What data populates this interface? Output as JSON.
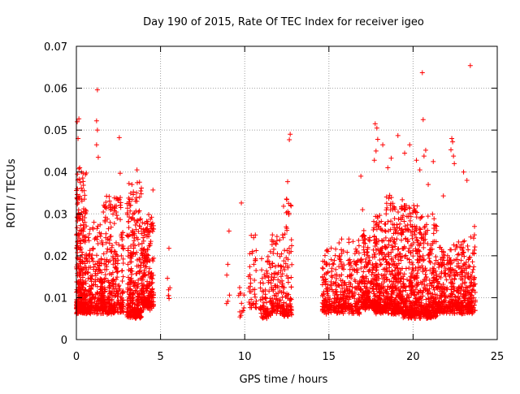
{
  "chart_data": {
    "type": "scatter",
    "title": "Day 190 of 2015, Rate Of TEC Index for receiver igeo",
    "xlabel": "GPS time / hours",
    "ylabel": "ROTI / TECUs",
    "xlim": [
      0,
      25
    ],
    "ylim": [
      0,
      0.07
    ],
    "x_ticks": [
      0,
      5,
      10,
      15,
      20,
      25
    ],
    "x_tick_labels": [
      "0",
      "5",
      "10",
      "15",
      "20",
      "25"
    ],
    "y_ticks": [
      0,
      0.01,
      0.02,
      0.03,
      0.04,
      0.05,
      0.06,
      0.07
    ],
    "y_tick_labels": [
      "0",
      "0.01",
      "0.02",
      "0.03",
      "0.04",
      "0.05",
      "0.06",
      "0.07"
    ],
    "grid": true,
    "marker": "plus",
    "color": "#ff0000",
    "clusters": [
      {
        "x_range": [
          0.0,
          0.6
        ],
        "y_range": [
          0.004,
          0.041
        ],
        "count": 340
      },
      {
        "x_range": [
          0.6,
          1.6
        ],
        "y_range": [
          0.004,
          0.028
        ],
        "count": 260
      },
      {
        "x_range": [
          1.6,
          2.8
        ],
        "y_range": [
          0.004,
          0.035
        ],
        "count": 300
      },
      {
        "x_range": [
          3.0,
          3.9
        ],
        "y_range": [
          0.003,
          0.038
        ],
        "count": 330
      },
      {
        "x_range": [
          3.9,
          4.6
        ],
        "y_range": [
          0.005,
          0.03
        ],
        "count": 220
      },
      {
        "x_range": [
          5.4,
          5.6
        ],
        "y_range": [
          0.007,
          0.016
        ],
        "count": 6
      },
      {
        "x_range": [
          8.9,
          9.1
        ],
        "y_range": [
          0.005,
          0.027
        ],
        "count": 6
      },
      {
        "x_range": [
          9.6,
          10.0
        ],
        "y_range": [
          0.003,
          0.013
        ],
        "count": 12
      },
      {
        "x_range": [
          10.2,
          10.7
        ],
        "y_range": [
          0.005,
          0.025
        ],
        "count": 40
      },
      {
        "x_range": [
          10.9,
          11.6
        ],
        "y_range": [
          0.003,
          0.021
        ],
        "count": 90
      },
      {
        "x_range": [
          11.6,
          12.3
        ],
        "y_range": [
          0.004,
          0.025
        ],
        "count": 110
      },
      {
        "x_range": [
          12.3,
          12.8
        ],
        "y_range": [
          0.003,
          0.034
        ],
        "count": 90
      },
      {
        "x_range": [
          14.6,
          15.6
        ],
        "y_range": [
          0.004,
          0.022
        ],
        "count": 160
      },
      {
        "x_range": [
          15.6,
          16.9
        ],
        "y_range": [
          0.004,
          0.024
        ],
        "count": 230
      },
      {
        "x_range": [
          16.9,
          17.6
        ],
        "y_range": [
          0.005,
          0.026
        ],
        "count": 170
      },
      {
        "x_range": [
          17.6,
          18.4
        ],
        "y_range": [
          0.004,
          0.03
        ],
        "count": 260
      },
      {
        "x_range": [
          18.4,
          19.4
        ],
        "y_range": [
          0.004,
          0.035
        ],
        "count": 320
      },
      {
        "x_range": [
          19.4,
          20.4
        ],
        "y_range": [
          0.003,
          0.032
        ],
        "count": 320
      },
      {
        "x_range": [
          20.4,
          21.4
        ],
        "y_range": [
          0.003,
          0.03
        ],
        "count": 290
      },
      {
        "x_range": [
          21.4,
          22.4
        ],
        "y_range": [
          0.004,
          0.022
        ],
        "count": 220
      },
      {
        "x_range": [
          22.4,
          23.7
        ],
        "y_range": [
          0.004,
          0.025
        ],
        "count": 290
      }
    ],
    "notable_points": [
      {
        "x": 0.05,
        "y": 0.052
      },
      {
        "x": 0.15,
        "y": 0.0527
      },
      {
        "x": 0.1,
        "y": 0.048
      },
      {
        "x": 0.2,
        "y": 0.041
      },
      {
        "x": 0.3,
        "y": 0.04
      },
      {
        "x": 1.25,
        "y": 0.0596
      },
      {
        "x": 1.2,
        "y": 0.0522
      },
      {
        "x": 1.25,
        "y": 0.05
      },
      {
        "x": 1.2,
        "y": 0.0465
      },
      {
        "x": 1.3,
        "y": 0.0435
      },
      {
        "x": 2.55,
        "y": 0.0482
      },
      {
        "x": 2.6,
        "y": 0.0397
      },
      {
        "x": 3.6,
        "y": 0.0405
      },
      {
        "x": 3.3,
        "y": 0.037
      },
      {
        "x": 4.55,
        "y": 0.0357
      },
      {
        "x": 5.5,
        "y": 0.0218
      },
      {
        "x": 9.8,
        "y": 0.0326
      },
      {
        "x": 12.7,
        "y": 0.049
      },
      {
        "x": 12.65,
        "y": 0.0477
      },
      {
        "x": 12.55,
        "y": 0.0377
      },
      {
        "x": 16.9,
        "y": 0.039
      },
      {
        "x": 17.0,
        "y": 0.031
      },
      {
        "x": 17.75,
        "y": 0.0515
      },
      {
        "x": 17.85,
        "y": 0.0505
      },
      {
        "x": 17.9,
        "y": 0.0478
      },
      {
        "x": 17.8,
        "y": 0.045
      },
      {
        "x": 17.7,
        "y": 0.0428
      },
      {
        "x": 18.2,
        "y": 0.0465
      },
      {
        "x": 18.7,
        "y": 0.0433
      },
      {
        "x": 18.5,
        "y": 0.041
      },
      {
        "x": 19.1,
        "y": 0.0487
      },
      {
        "x": 19.5,
        "y": 0.0445
      },
      {
        "x": 19.8,
        "y": 0.0465
      },
      {
        "x": 20.2,
        "y": 0.0428
      },
      {
        "x": 20.4,
        "y": 0.0405
      },
      {
        "x": 20.55,
        "y": 0.0637
      },
      {
        "x": 20.6,
        "y": 0.0525
      },
      {
        "x": 20.75,
        "y": 0.0452
      },
      {
        "x": 20.65,
        "y": 0.0438
      },
      {
        "x": 20.9,
        "y": 0.037
      },
      {
        "x": 21.2,
        "y": 0.0425
      },
      {
        "x": 21.8,
        "y": 0.0343
      },
      {
        "x": 22.3,
        "y": 0.048
      },
      {
        "x": 22.35,
        "y": 0.0472
      },
      {
        "x": 22.25,
        "y": 0.0453
      },
      {
        "x": 22.4,
        "y": 0.0438
      },
      {
        "x": 22.45,
        "y": 0.042
      },
      {
        "x": 23.0,
        "y": 0.04
      },
      {
        "x": 23.2,
        "y": 0.038
      },
      {
        "x": 23.4,
        "y": 0.0654
      },
      {
        "x": 23.65,
        "y": 0.027
      }
    ]
  }
}
